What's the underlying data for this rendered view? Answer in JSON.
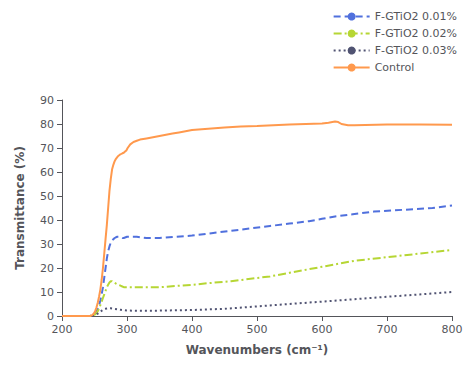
{
  "chart_data": {
    "type": "line",
    "xlabel": "Wavenumbers (cm⁻¹)",
    "ylabel": "Transmittance (%)",
    "xlim": [
      200,
      800
    ],
    "ylim": [
      0,
      90
    ],
    "xticks": [
      200,
      300,
      400,
      500,
      600,
      700,
      800
    ],
    "yticks": [
      0,
      10,
      20,
      30,
      40,
      50,
      60,
      70,
      80,
      90
    ],
    "grid": false,
    "legend": "top",
    "series": [
      {
        "name": "F-GTiO2 0.01%",
        "line_style": "dashed",
        "x": [
          200,
          232,
          237,
          240,
          243,
          245,
          247,
          249,
          251,
          253,
          255,
          257,
          259,
          261,
          263,
          265,
          267,
          269,
          271,
          273,
          275,
          277,
          279,
          281,
          283,
          285,
          287,
          289,
          291,
          293,
          295,
          300,
          305,
          310,
          315,
          320,
          330,
          340,
          350,
          375,
          400,
          430,
          460,
          490,
          520,
          550,
          580,
          600,
          620,
          650,
          680,
          710,
          740,
          770,
          800
        ],
        "values": [
          0,
          0,
          0,
          0,
          0,
          0.1,
          0.2,
          0.5,
          1.0,
          1.8,
          3.0,
          4.5,
          6.5,
          9,
          12,
          16,
          20,
          24,
          27,
          29,
          30.5,
          31.5,
          32.0,
          32.5,
          32.8,
          33.0,
          33.0,
          33.0,
          32.8,
          32.5,
          32.5,
          33.0,
          33.0,
          33.0,
          33.0,
          32.8,
          32.5,
          32.5,
          32.5,
          33.0,
          33.5,
          34.5,
          35.5,
          36.5,
          37.5,
          38.5,
          39.5,
          40.5,
          41.5,
          42.5,
          43.5,
          44.0,
          44.5,
          45.0,
          46.0
        ]
      },
      {
        "name": "F-GTiO2 0.02%",
        "line_style": "dashdot",
        "x": [
          200,
          232,
          237,
          240,
          243,
          245,
          247,
          249,
          251,
          253,
          255,
          257,
          259,
          261,
          263,
          265,
          267,
          269,
          271,
          273,
          275,
          277,
          279,
          281,
          283,
          285,
          287,
          289,
          291,
          295,
          300,
          305,
          310,
          320,
          330,
          350,
          375,
          400,
          430,
          460,
          490,
          520,
          550,
          580,
          600,
          620,
          650,
          700,
          750,
          800
        ],
        "values": [
          0,
          0,
          0,
          0,
          0,
          0.1,
          0.2,
          0.4,
          0.7,
          1.2,
          2.0,
          3.0,
          4.5,
          6,
          7.5,
          9,
          10.5,
          12,
          13,
          14,
          14.5,
          14.5,
          14.2,
          13.8,
          13.5,
          13.2,
          13.0,
          12.8,
          12.5,
          12.0,
          12.0,
          12.0,
          12.0,
          12.0,
          12.0,
          12.0,
          12.5,
          13.0,
          13.8,
          14.5,
          15.5,
          16.5,
          18.0,
          19.5,
          20.5,
          21.5,
          23.0,
          24.5,
          26.0,
          27.5
        ]
      },
      {
        "name": "F-GTiO2 0.03%",
        "line_style": "dotted",
        "x": [
          200,
          232,
          237,
          240,
          243,
          245,
          247,
          249,
          251,
          253,
          255,
          257,
          259,
          261,
          263,
          265,
          267,
          269,
          271,
          275,
          280,
          285,
          290,
          295,
          300,
          310,
          320,
          340,
          360,
          400,
          450,
          500,
          550,
          600,
          650,
          700,
          750,
          800
        ],
        "values": [
          0,
          0,
          0,
          0,
          0,
          0.05,
          0.1,
          0.2,
          0.4,
          0.7,
          1.0,
          1.4,
          1.8,
          2.2,
          2.5,
          2.8,
          3.0,
          3.1,
          3.2,
          3.2,
          3.0,
          2.8,
          2.6,
          2.4,
          2.3,
          2.2,
          2.2,
          2.2,
          2.3,
          2.5,
          3.0,
          4.0,
          5.0,
          6.0,
          7.0,
          8.0,
          9.0,
          10.0
        ]
      },
      {
        "name": "Control",
        "line_style": "solid",
        "x": [
          200,
          232,
          237,
          240,
          243,
          245,
          247,
          249,
          251,
          253,
          255,
          257,
          259,
          261,
          263,
          265,
          267,
          269,
          271,
          273,
          275,
          277,
          279,
          281,
          283,
          285,
          287,
          289,
          291,
          293,
          295,
          297,
          299,
          301,
          305,
          310,
          315,
          320,
          330,
          340,
          350,
          360,
          370,
          380,
          390,
          400,
          425,
          450,
          475,
          500,
          525,
          550,
          575,
          600,
          610,
          620,
          625,
          630,
          640,
          650,
          700,
          750,
          800
        ],
        "values": [
          0,
          0,
          0,
          0,
          0,
          0.2,
          0.5,
          1.0,
          2.0,
          3.5,
          5.5,
          8,
          11,
          15,
          20,
          26,
          32,
          38,
          45,
          52,
          57,
          61,
          63,
          64.5,
          65.5,
          66.2,
          66.8,
          67.2,
          67.5,
          67.8,
          68.0,
          68.5,
          69.0,
          70.0,
          71.5,
          72.5,
          73.0,
          73.5,
          74.0,
          74.5,
          75.0,
          75.5,
          76.0,
          76.5,
          77.0,
          77.5,
          78.0,
          78.5,
          79.0,
          79.2,
          79.5,
          79.8,
          80.0,
          80.2,
          80.5,
          81.0,
          80.8,
          80.0,
          79.5,
          79.5,
          79.8,
          79.8,
          79.7
        ]
      }
    ]
  }
}
